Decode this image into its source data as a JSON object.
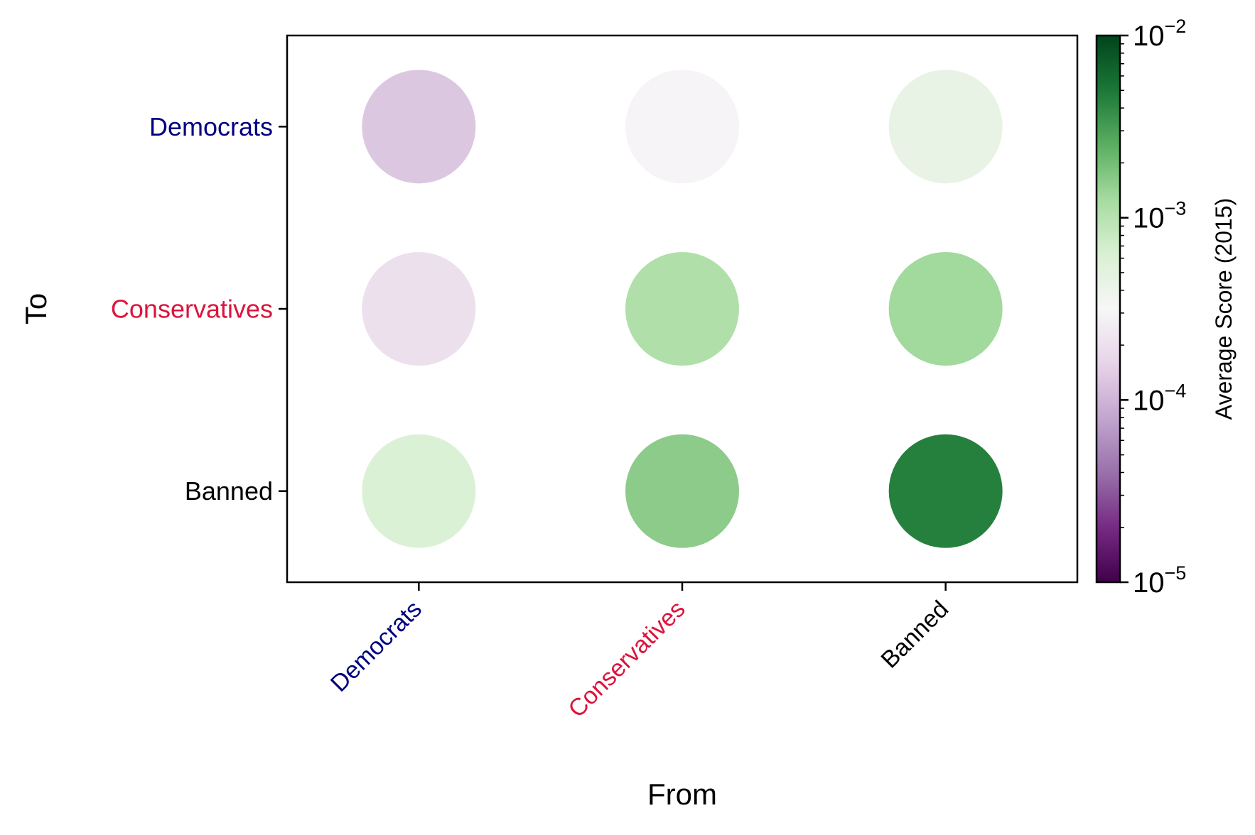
{
  "chart_data": {
    "type": "scatter",
    "subtype": "bubble-matrix",
    "xlabel": "From",
    "ylabel": "To",
    "x_categories": [
      "Democrats",
      "Conservatives",
      "Banned"
    ],
    "y_categories": [
      "Democrats",
      "Conservatives",
      "Banned"
    ],
    "category_colors": {
      "Democrats": "#000080",
      "Conservatives": "#dc143c",
      "Banned": "#000000"
    },
    "points": [
      {
        "from": "Democrats",
        "to": "Democrats",
        "value": 0.00013
      },
      {
        "from": "Conservatives",
        "to": "Democrats",
        "value": 0.0003
      },
      {
        "from": "Banned",
        "to": "Democrats",
        "value": 0.00045
      },
      {
        "from": "Democrats",
        "to": "Conservatives",
        "value": 0.0002
      },
      {
        "from": "Conservatives",
        "to": "Conservatives",
        "value": 0.0011
      },
      {
        "from": "Banned",
        "to": "Conservatives",
        "value": 0.0013
      },
      {
        "from": "Democrats",
        "to": "Banned",
        "value": 0.0006
      },
      {
        "from": "Conservatives",
        "to": "Banned",
        "value": 0.0016
      },
      {
        "from": "Banned",
        "to": "Banned",
        "value": 0.0045
      }
    ],
    "colorbar": {
      "label": "Average Score (2015)",
      "scale": "log",
      "range": [
        1e-05,
        0.01
      ],
      "colormap": "PRGn",
      "center": 0.000316,
      "ticks": [
        {
          "value": 1e-05,
          "base": "10",
          "exp": "−5"
        },
        {
          "value": 0.0001,
          "base": "10",
          "exp": "−4"
        },
        {
          "value": 0.001,
          "base": "10",
          "exp": "−3"
        },
        {
          "value": 0.01,
          "base": "10",
          "exp": "−2"
        }
      ]
    },
    "grid": false,
    "legend": "none"
  }
}
